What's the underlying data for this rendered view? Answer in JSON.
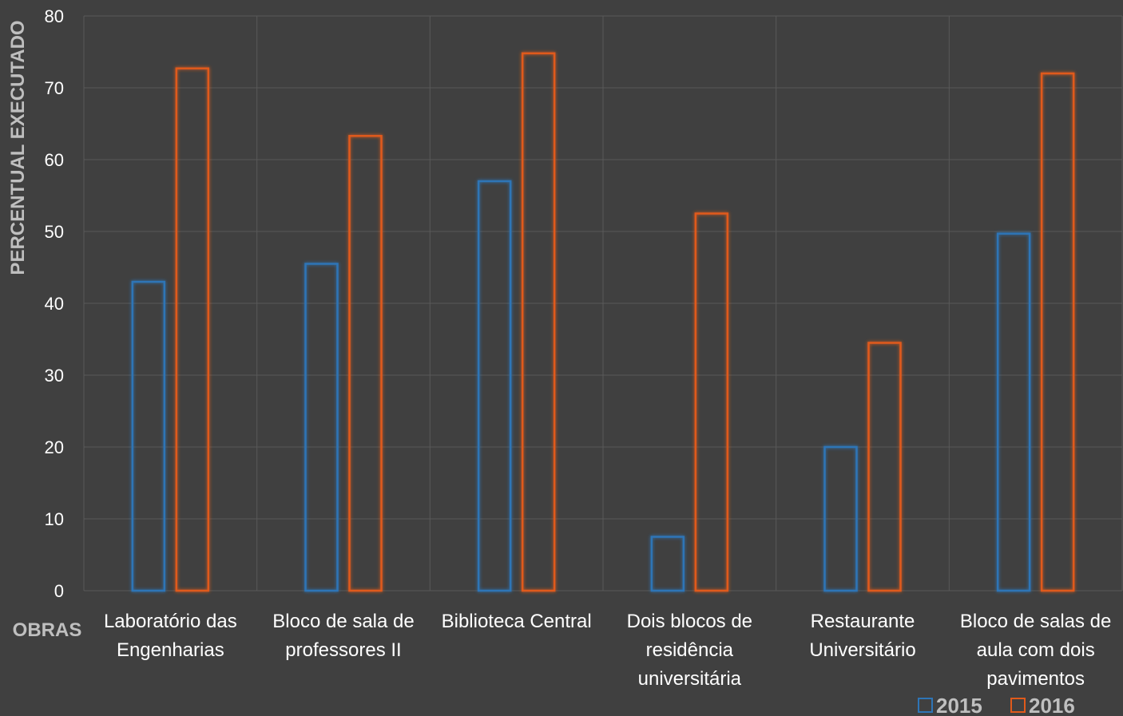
{
  "chart_data": {
    "type": "bar",
    "title": "",
    "xlabel": "OBRAS",
    "ylabel": "PERCENTUAL EXECUTADO",
    "ylim": [
      0,
      80
    ],
    "yticks": [
      0,
      10,
      20,
      30,
      40,
      50,
      60,
      70,
      80
    ],
    "grid": true,
    "legend_position": "bottom-right",
    "categories": [
      [
        "Laboratório das",
        "Engenharias"
      ],
      [
        "Bloco de sala de",
        "professores II"
      ],
      [
        "Biblioteca Central"
      ],
      [
        "Dois blocos de",
        "residência",
        "universitária"
      ],
      [
        "Restaurante",
        "Universitário"
      ],
      [
        "Bloco de salas de",
        "aula com dois",
        "pavimentos"
      ]
    ],
    "series": [
      {
        "name": "2015",
        "color": "#2e75b6",
        "values": [
          43,
          45.5,
          57,
          7.5,
          20,
          49.7
        ]
      },
      {
        "name": "2016",
        "color": "#e05a1b",
        "values": [
          72.7,
          63.3,
          74.8,
          52.5,
          34.5,
          72
        ]
      }
    ]
  }
}
